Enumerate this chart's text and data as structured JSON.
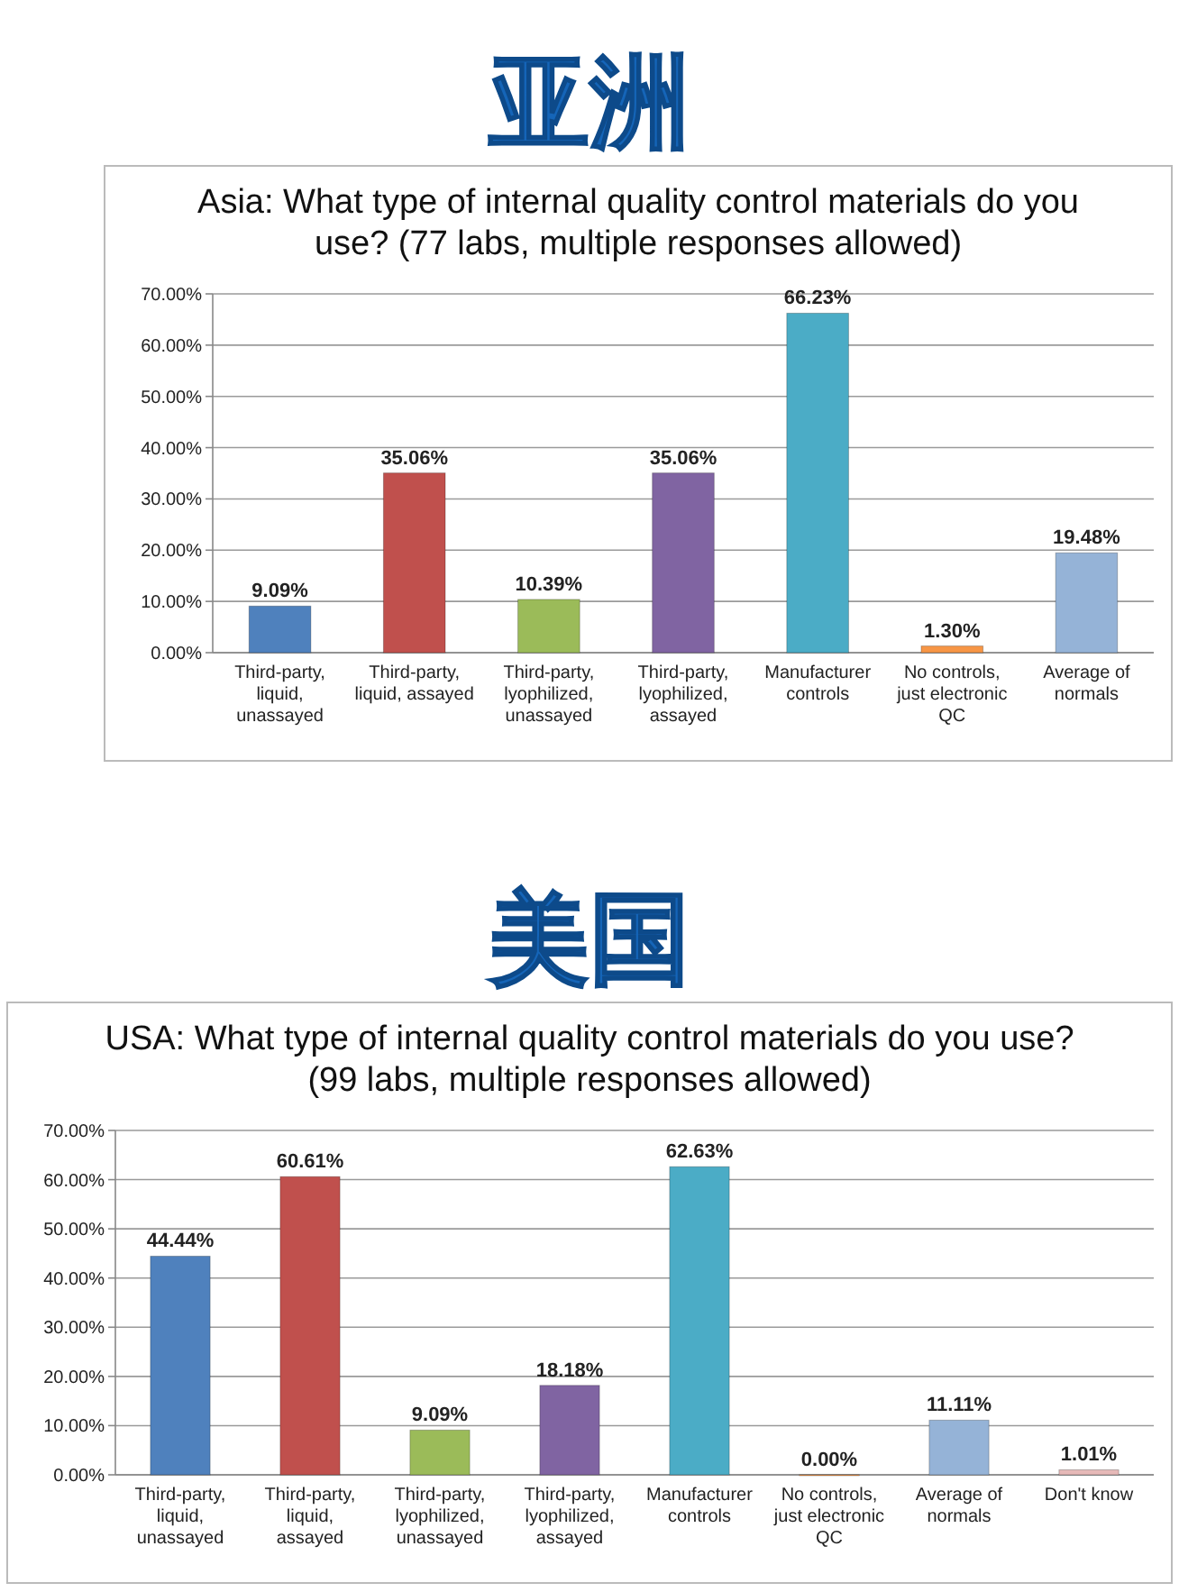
{
  "chart_data": [
    {
      "type": "bar",
      "title": "亚洲",
      "subtitle": "Asia: What type of internal quality control materials do you use? (77 labs, multiple responses allowed)",
      "categories": [
        "Third-party, liquid, unassayed",
        "Third-party, liquid, assayed",
        "Third-party, lyophilized, unassayed",
        "Third-party, lyophilized, assayed",
        "Manufacturer controls",
        "No controls, just electronic QC",
        "Average of normals"
      ],
      "values": [
        9.09,
        35.06,
        10.39,
        35.06,
        66.23,
        1.3,
        19.48
      ],
      "value_labels": [
        "9.09%",
        "35.06%",
        "10.39%",
        "35.06%",
        "66.23%",
        "1.30%",
        "19.48%"
      ],
      "colors": [
        "#4f81bd",
        "#c0504d",
        "#9bbb59",
        "#8064a2",
        "#4bacc6",
        "#f79646",
        "#95b3d7"
      ],
      "ylim": [
        0,
        70
      ],
      "yticks": [
        {
          "value": 0,
          "label": "0.00%"
        },
        {
          "value": 10,
          "label": "10.00%"
        },
        {
          "value": 20,
          "label": "20.00%"
        },
        {
          "value": 30,
          "label": "30.00%"
        },
        {
          "value": 40,
          "label": "40.00%"
        },
        {
          "value": 50,
          "label": "50.00%"
        },
        {
          "value": 60,
          "label": "60.00%"
        },
        {
          "value": 70,
          "label": "70.00%"
        }
      ],
      "grid": "y"
    },
    {
      "type": "bar",
      "title": "美国",
      "subtitle": "USA: What type of internal quality control materials do you use? (99 labs, multiple responses allowed)",
      "categories": [
        "Third-party, liquid, unassayed",
        "Third-party, liquid, assayed",
        "Third-party, lyophilized, unassayed",
        "Third-party, lyophilized, assayed",
        "Manufacturer controls",
        "No controls, just electronic QC",
        "Average of normals",
        "Don't know"
      ],
      "values": [
        44.44,
        60.61,
        9.09,
        18.18,
        62.63,
        0.0,
        11.11,
        1.01
      ],
      "value_labels": [
        "44.44%",
        "60.61%",
        "9.09%",
        "18.18%",
        "62.63%",
        "0.00%",
        "11.11%",
        "1.01%"
      ],
      "colors": [
        "#4f81bd",
        "#c0504d",
        "#9bbb59",
        "#8064a2",
        "#4bacc6",
        "#f79646",
        "#95b3d7",
        "#e6b9b8"
      ],
      "ylim": [
        0,
        70
      ],
      "yticks": [
        {
          "value": 0,
          "label": "0.00%"
        },
        {
          "value": 10,
          "label": "10.00%"
        },
        {
          "value": 20,
          "label": "20.00%"
        },
        {
          "value": 30,
          "label": "30.00%"
        },
        {
          "value": 40,
          "label": "40.00%"
        },
        {
          "value": 50,
          "label": "50.00%"
        },
        {
          "value": 60,
          "label": "60.00%"
        },
        {
          "value": 70,
          "label": "70.00%"
        }
      ],
      "grid": "y"
    }
  ]
}
